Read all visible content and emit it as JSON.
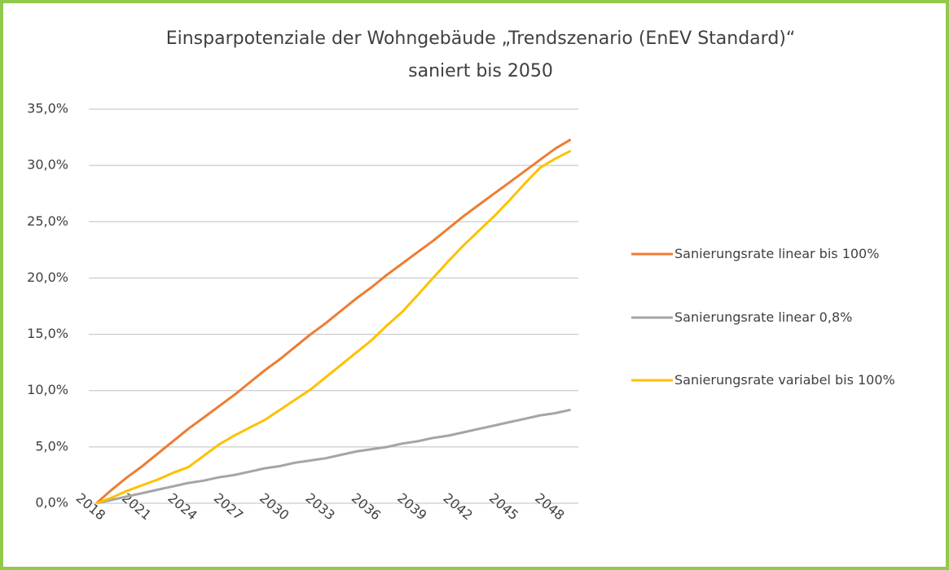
{
  "chart_data": {
    "type": "line",
    "title": [
      "Einsparpotenziale der Wohngebäude „Trendszenario (EnEV Standard)“",
      "saniert bis 2050"
    ],
    "categories": [
      "2018",
      null,
      null,
      "2021",
      null,
      null,
      "2024",
      null,
      null,
      "2027",
      null,
      null,
      "2030",
      null,
      null,
      "2033",
      null,
      null,
      "2036",
      null,
      null,
      "2039",
      null,
      null,
      "2042",
      null,
      null,
      "2045",
      null,
      null,
      "2048",
      null
    ],
    "series": [
      {
        "name": "Sanierungsrate linear bis 100%",
        "color": "#ed7d31",
        "values": [
          0,
          1.2,
          2.3,
          3.3,
          4.4,
          5.5,
          6.6,
          7.6,
          8.6,
          9.6,
          10.7,
          11.8,
          12.8,
          13.9,
          15.0,
          16.0,
          17.1,
          18.2,
          19.2,
          20.3,
          21.3,
          22.3,
          23.3,
          24.4,
          25.5,
          26.5,
          27.5,
          28.5,
          29.5,
          30.5,
          31.5,
          32.3
        ]
      },
      {
        "name": "Sanierungsrate linear 0,8%",
        "color": "#a5a5a5",
        "values": [
          0,
          0.3,
          0.6,
          0.9,
          1.2,
          1.5,
          1.8,
          2.0,
          2.3,
          2.5,
          2.8,
          3.1,
          3.3,
          3.6,
          3.8,
          4.0,
          4.3,
          4.6,
          4.8,
          5.0,
          5.3,
          5.5,
          5.8,
          6.0,
          6.3,
          6.6,
          6.9,
          7.2,
          7.5,
          7.8,
          8.0,
          8.3
        ]
      },
      {
        "name": "Sanierungsrate variabel bis 100%",
        "color": "#ffc000",
        "values": [
          0,
          0.5,
          1.1,
          1.6,
          2.1,
          2.7,
          3.2,
          4.2,
          5.2,
          6.0,
          6.7,
          7.4,
          8.3,
          9.2,
          10.1,
          11.2,
          12.3,
          13.4,
          14.5,
          15.8,
          17.0,
          18.5,
          20.0,
          21.5,
          22.9,
          24.2,
          25.5,
          26.9,
          28.4,
          29.8,
          30.6,
          31.3
        ]
      }
    ],
    "ylim": [
      0,
      35
    ],
    "yticks": [
      {
        "value": 0,
        "label": "0,0%"
      },
      {
        "value": 5,
        "label": "5,0%"
      },
      {
        "value": 10,
        "label": "10,0%"
      },
      {
        "value": 15,
        "label": "15,0%"
      },
      {
        "value": 20,
        "label": "20,0%"
      },
      {
        "value": 25,
        "label": "25,0%"
      },
      {
        "value": 30,
        "label": "30,0%"
      },
      {
        "value": 35,
        "label": "35,0%"
      }
    ],
    "grid": true,
    "legend": "right"
  }
}
